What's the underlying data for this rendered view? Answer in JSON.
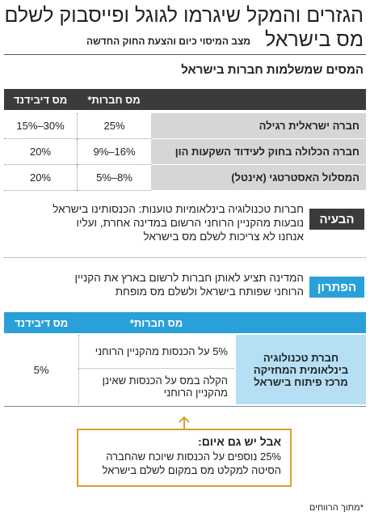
{
  "header": {
    "title_lines": [
      "הגזרים והמקל שיגרמו לגוגל ופייסבוק לשלם",
      "מס בישראל"
    ],
    "subtitle": "מצב המיסוי כיום והצעת החוק החדשה"
  },
  "section_title": "המסים שמשלמות חברות בישראל",
  "table1": {
    "headers": [
      "מס חברות*",
      "מס דיבידנד"
    ],
    "rows": [
      [
        "חברה ישראלית רגילה",
        "25%",
        "30%–15%"
      ],
      [
        "חברה הכלולה בחוק לעידוד השקעות הון",
        "16%–9%",
        "20%"
      ],
      [
        "המסלול האסטרטגי (אינטל)",
        "8%–5%",
        "20%"
      ]
    ]
  },
  "problem": {
    "label": "הבעיה",
    "text": "חברות טכנולוגיה בינלאומיות טוענות: הכנסותינו בישראל נובעות מהקניין הרוחני הרשום במדינה אחרת, ועליו אנחנו לא צריכות לשלם מס בישראל"
  },
  "solution": {
    "label": "הפתרון",
    "text": "המדינה תציע לאותן חברות לרשום בארץ את הקניין הרוחני שפותח בישראל ולשלם מס מופחת"
  },
  "table2": {
    "headers": [
      "מס חברות*",
      "מס דיבידנד"
    ],
    "row_label": "חברת טכנולוגיה בינלאומית המחזיקה מרכז פיתוח בישראל",
    "corporate_tax": [
      "5% על הכנסות מהקניין הרוחני",
      "הקלה במס על הכנסות שאינן מהקניין הרוחני"
    ],
    "dividend_tax": "5%"
  },
  "threat": {
    "title": "אבל יש גם איום:",
    "text": "25% נוספים על הכנסות שיוכח שהחברה הסיטה למקלט מס במקום לשלם בישראל"
  },
  "footnote": "*מתוך הרווחים"
}
